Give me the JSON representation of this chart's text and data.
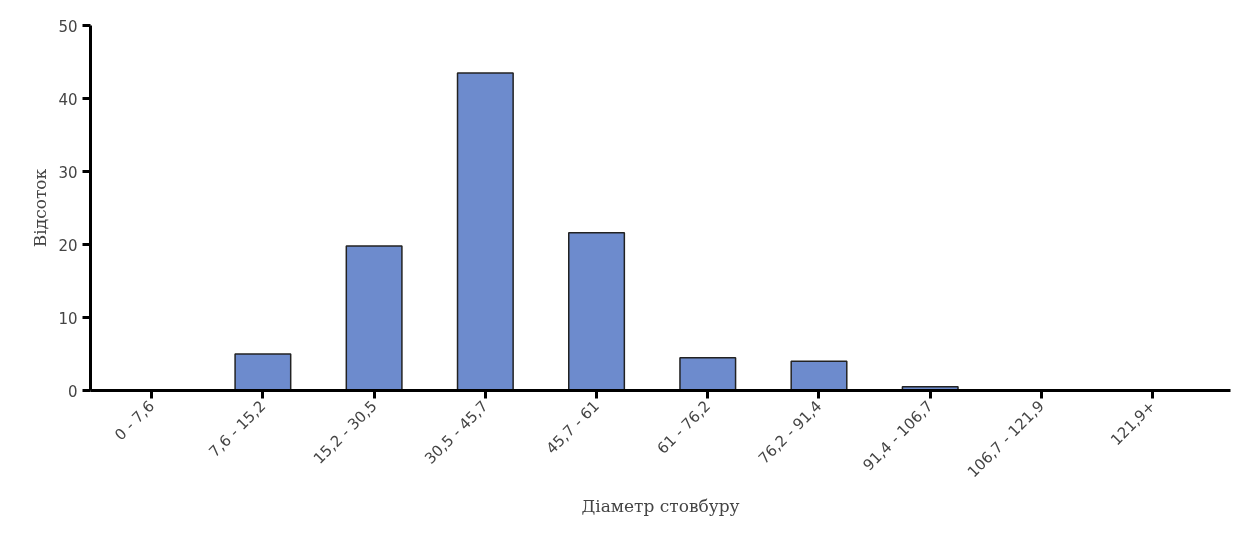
{
  "chart_data": {
    "type": "bar",
    "xlabel": "Діаметр стовбуру",
    "ylabel": "Відсоток",
    "categories": [
      "0 - 7,6",
      "7,6 - 15,2",
      "15,2 - 30,5",
      "30,5 - 45,7",
      "45,7 - 61",
      "61 - 76,2",
      "76,2 - 91,4",
      "91,4 - 106,7",
      "106,7 - 121,9",
      "121,9+"
    ],
    "values": [
      0,
      5,
      19.8,
      43.5,
      21.6,
      4.5,
      4.0,
      0.5,
      0,
      0
    ],
    "color": "#6d8bcd",
    "ylim": [
      0,
      50
    ],
    "yticks": [
      0,
      10,
      20,
      30,
      40,
      50
    ],
    "grid": false
  }
}
